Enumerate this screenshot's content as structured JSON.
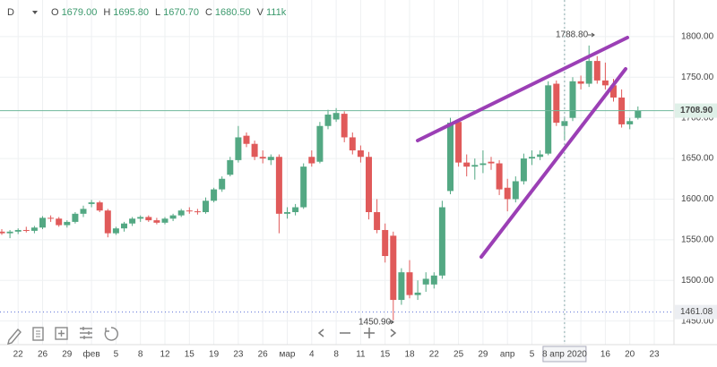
{
  "chart_data": {
    "type": "candlestick",
    "symbol": "D",
    "ohlc_legend": [
      {
        "label": "O",
        "value": "1679.00"
      },
      {
        "label": "H",
        "value": "1695.80"
      },
      {
        "label": "L",
        "value": "1670.70"
      },
      {
        "label": "C",
        "value": "1680.50"
      },
      {
        "label": "V",
        "value": "111k"
      }
    ],
    "categories": [
      null,
      null,
      "22",
      null,
      null,
      "26",
      null,
      null,
      "29",
      null,
      null,
      "фев",
      null,
      null,
      "5",
      null,
      null,
      "8",
      null,
      null,
      "12",
      null,
      null,
      "15",
      null,
      null,
      "19",
      null,
      null,
      "23",
      null,
      null,
      "26",
      null,
      null,
      "мар",
      null,
      null,
      "4",
      null,
      null,
      "8",
      null,
      null,
      "11",
      null,
      null,
      "15",
      null,
      null,
      "18",
      null,
      null,
      "22",
      null,
      null,
      "25",
      null,
      null,
      "29",
      null,
      null,
      "апр",
      null,
      null,
      "5",
      null,
      null,
      null,
      "8 апр 2020",
      null,
      "13",
      null,
      null,
      "16",
      null,
      null,
      "20",
      null,
      null,
      "23"
    ],
    "open": [
      1560,
      1558,
      1560,
      1562,
      1561,
      1565,
      1577,
      1576,
      1568,
      1572,
      1582,
      1594,
      1596,
      1586,
      1558,
      1564,
      1570,
      1576,
      1578,
      1574,
      1571,
      1576,
      1580,
      1586,
      1585,
      1584,
      1598,
      1612,
      1630,
      1648,
      1678,
      1668,
      1652,
      1648,
      1652,
      1582,
      1584,
      1590,
      1652,
      1646,
      1690,
      1698,
      1705,
      1676,
      1660,
      1652,
      1584,
      1562,
      1555,
      1476,
      1510,
      1482,
      1495,
      1495,
      1506,
      1610,
      1695,
      1645,
      1640,
      1642,
      1646,
      1644,
      1614,
      1600,
      1622,
      1650,
      1652,
      1656,
      1742,
      1690,
      1700,
      1745,
      1742,
      1770,
      1746,
      1740,
      1725,
      1692,
      1700,
      null,
      null
    ],
    "high": [
      1563,
      1562,
      1564,
      1566,
      1567,
      1579,
      1580,
      1578,
      1574,
      1584,
      1592,
      1599,
      1598,
      1588,
      1566,
      1572,
      1578,
      1580,
      1580,
      1577,
      1578,
      1582,
      1588,
      1590,
      1588,
      1602,
      1614,
      1628,
      1652,
      1690,
      1682,
      1672,
      1660,
      1655,
      1655,
      1590,
      1594,
      1644,
      1660,
      1695,
      1710,
      1712,
      1708,
      1682,
      1666,
      1658,
      1600,
      1570,
      1560,
      1515,
      1525,
      1500,
      1510,
      1510,
      1598,
      1700,
      1698,
      1655,
      1650,
      1660,
      1652,
      1648,
      1625,
      1628,
      1656,
      1660,
      1660,
      1745,
      1746,
      1700,
      1750,
      1752,
      1789,
      1776,
      1768,
      1748,
      1735,
      1700,
      1714,
      null,
      null
    ],
    "low": [
      1556,
      1552,
      1557,
      1559,
      1558,
      1563,
      1572,
      1566,
      1565,
      1570,
      1578,
      1590,
      1584,
      1553,
      1556,
      1560,
      1567,
      1572,
      1572,
      1569,
      1569,
      1573,
      1578,
      1582,
      1581,
      1582,
      1596,
      1609,
      1628,
      1645,
      1664,
      1648,
      1644,
      1642,
      1558,
      1576,
      1580,
      1588,
      1640,
      1644,
      1686,
      1695,
      1670,
      1655,
      1645,
      1575,
      1558,
      1522,
      1451,
      1470,
      1478,
      1476,
      1486,
      1490,
      1502,
      1606,
      1640,
      1628,
      1624,
      1632,
      1636,
      1605,
      1585,
      1596,
      1618,
      1642,
      1648,
      1654,
      1690,
      1672,
      1696,
      1735,
      1738,
      1742,
      1735,
      1720,
      1688,
      1686,
      1698,
      null,
      null
    ],
    "close": [
      1558,
      1560,
      1562,
      1561,
      1565,
      1577,
      1576,
      1568,
      1572,
      1582,
      1588,
      1596,
      1586,
      1558,
      1564,
      1570,
      1576,
      1578,
      1574,
      1571,
      1576,
      1580,
      1586,
      1585,
      1584,
      1598,
      1612,
      1625,
      1648,
      1676,
      1668,
      1652,
      1650,
      1652,
      1582,
      1584,
      1590,
      1640,
      1644,
      1690,
      1704,
      1706,
      1676,
      1660,
      1652,
      1584,
      1562,
      1530,
      1476,
      1510,
      1482,
      1485,
      1502,
      1506,
      1590,
      1694,
      1645,
      1640,
      1642,
      1644,
      1644,
      1612,
      1600,
      1622,
      1650,
      1652,
      1655,
      1740,
      1694,
      1696,
      1745,
      1742,
      1770,
      1746,
      1740,
      1725,
      1692,
      1696,
      1709,
      null,
      null
    ],
    "up_color": "#53a883",
    "down_color": "#e05a5a",
    "ylim": [
      1421,
      1845
    ],
    "yticks": [
      {
        "value": 1450,
        "label": "1450.00"
      },
      {
        "value": 1500,
        "label": "1500.00"
      },
      {
        "value": 1550,
        "label": "1550.00"
      },
      {
        "value": 1600,
        "label": "1600.00"
      },
      {
        "value": 1650,
        "label": "1650.00"
      },
      {
        "value": 1700,
        "label": "1700.00"
      },
      {
        "value": 1750,
        "label": "1750.00"
      },
      {
        "value": 1800,
        "label": "1800.00"
      }
    ],
    "grid": true,
    "last_price": {
      "value": 1708.9,
      "label": "1708.90"
    },
    "low_line": {
      "value": 1461.08,
      "label": "1461.08"
    },
    "max_label": {
      "value": 1788.8,
      "label": "1788.80"
    },
    "min_label": {
      "value": 1450.9,
      "label": "1450.90"
    },
    "crosshair": "8 апр 2020"
  }
}
